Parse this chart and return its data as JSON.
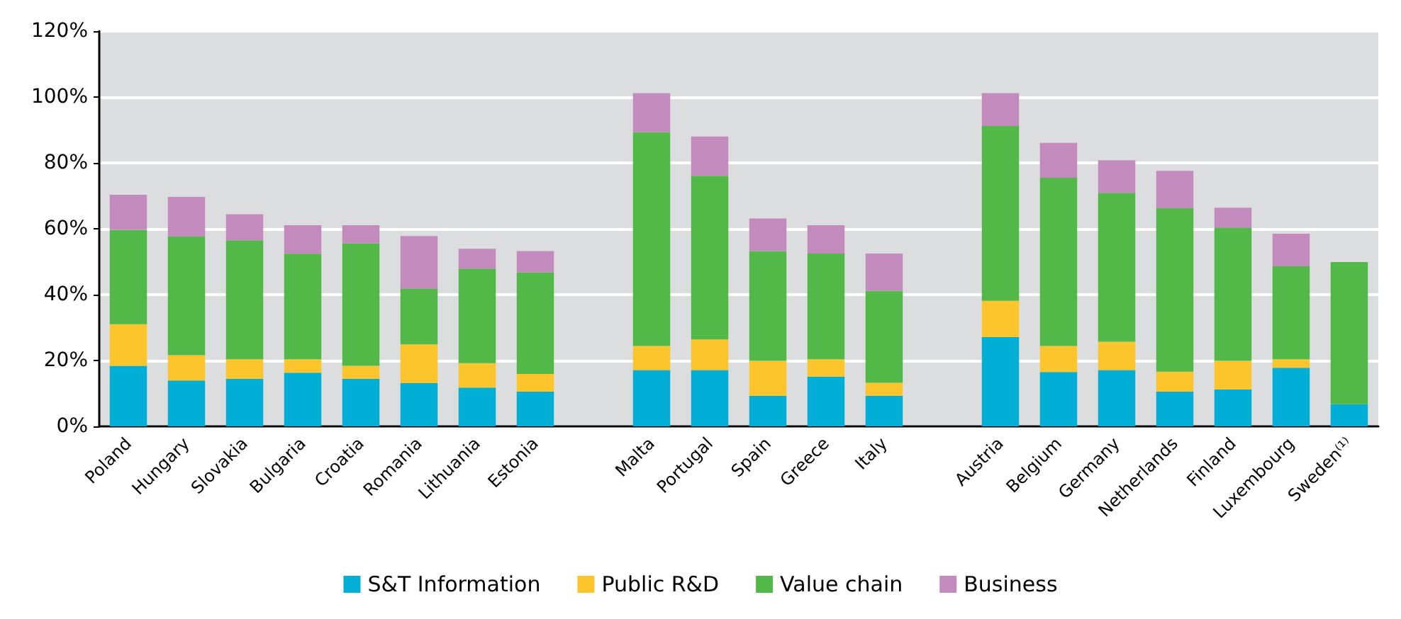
{
  "chart_data": {
    "type": "bar",
    "stacked": true,
    "categories": [
      "Poland",
      "Hungary",
      "Slovakia",
      "Bulgaria",
      "Croatia",
      "Romania",
      "Lithuania",
      "Estonia",
      null,
      "Malta",
      "Portugal",
      "Spain",
      "Greece",
      "Italy",
      null,
      "Austria",
      "Belgium",
      "Germany",
      "Netherlands",
      "Finland",
      "Luxembourg",
      "Sweden⁽¹⁾"
    ],
    "series": [
      {
        "name": "S&T Information",
        "color": "#00aed6",
        "values": [
          18.4,
          13.9,
          14.4,
          16.3,
          14.4,
          13.1,
          11.8,
          10.6,
          null,
          17.1,
          17.1,
          9.3,
          15.1,
          9.3,
          null,
          27.1,
          16.5,
          17.1,
          10.6,
          11.2,
          17.8,
          6.7
        ]
      },
      {
        "name": "Public R&D",
        "color": "#fdc52c",
        "values": [
          12.6,
          7.7,
          6.0,
          4.1,
          4.0,
          11.8,
          7.4,
          5.3,
          null,
          7.3,
          9.3,
          10.6,
          5.3,
          3.9,
          null,
          11.0,
          7.9,
          8.6,
          6.0,
          8.7,
          2.6,
          null
        ]
      },
      {
        "name": "Value chain",
        "color": "#52b848",
        "values": [
          28.7,
          36.1,
          36.1,
          32.0,
          37.2,
          17.0,
          28.7,
          30.8,
          null,
          64.9,
          49.7,
          33.3,
          32.1,
          28.0,
          null,
          53.1,
          51.1,
          45.2,
          49.7,
          40.5,
          28.2,
          43.2
        ]
      },
      {
        "name": "Business",
        "color": "#c38bbd",
        "values": [
          10.6,
          12.0,
          7.9,
          8.7,
          5.5,
          15.9,
          6.0,
          6.5,
          null,
          11.9,
          11.9,
          9.9,
          8.6,
          11.3,
          null,
          10.0,
          10.6,
          9.9,
          11.3,
          6.0,
          9.9,
          null
        ]
      }
    ],
    "ylim": [
      0,
      120
    ],
    "yticks": [
      {
        "value": 0,
        "label": "0%"
      },
      {
        "value": 20,
        "label": "20%"
      },
      {
        "value": 40,
        "label": "40%"
      },
      {
        "value": 60,
        "label": "60%"
      },
      {
        "value": 80,
        "label": "80%"
      },
      {
        "value": 100,
        "label": "100%"
      },
      {
        "value": 120,
        "label": "120%"
      }
    ],
    "grid": "y",
    "legend": "bottom"
  }
}
